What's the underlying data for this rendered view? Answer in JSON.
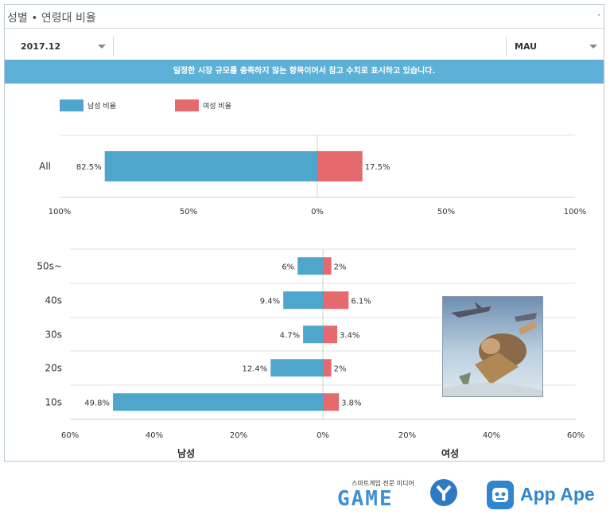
{
  "panel": {
    "title": "성별 • 연령대 비율",
    "more_glyph": "·"
  },
  "filters": {
    "period": "2017.12",
    "metric": "MAU"
  },
  "notice": "일정한 시장 규모를 충족하지 않는 항목이어서 참고 수치로 표시하고 있습니다.",
  "colors": {
    "male": "#4fa6cd",
    "female": "#e46a6e"
  },
  "chart_data": [
    {
      "type": "bar",
      "orientation": "horizontal-diverging",
      "categories": [
        "All"
      ],
      "series": [
        {
          "name": "남성 비율",
          "values": [
            82.5
          ],
          "labels": [
            "82.5%"
          ]
        },
        {
          "name": "여성 비율",
          "values": [
            17.5
          ],
          "labels": [
            "17.5%"
          ]
        }
      ],
      "xlim": [
        -100,
        100
      ],
      "x_ticks": [
        "100%",
        "50%",
        "0%",
        "50%",
        "100%"
      ],
      "legend": "top-left",
      "grid": true
    },
    {
      "type": "bar",
      "orientation": "horizontal-diverging",
      "categories": [
        "50s~",
        "40s",
        "30s",
        "20s",
        "10s"
      ],
      "series": [
        {
          "name": "남성",
          "values": [
            6,
            9.4,
            4.7,
            12.4,
            49.8
          ],
          "labels": [
            "6%",
            "9.4%",
            "4.7%",
            "12.4%",
            "49.8%"
          ]
        },
        {
          "name": "여성",
          "values": [
            2,
            6.1,
            3.4,
            2,
            3.8
          ],
          "labels": [
            "2%",
            "6.1%",
            "3.4%",
            "2%",
            "3.8%"
          ]
        }
      ],
      "xlim": [
        -60,
        60
      ],
      "x_ticks": [
        "60%",
        "40%",
        "20%",
        "0%",
        "20%",
        "40%",
        "60%"
      ],
      "xlabel_left": "남성",
      "xlabel_right": "여성",
      "grid": true
    }
  ],
  "footer": {
    "gamey_sub": "스마트게임 전문 미디어",
    "gamey_logo": "GAME",
    "app_ape": "App Ape"
  }
}
